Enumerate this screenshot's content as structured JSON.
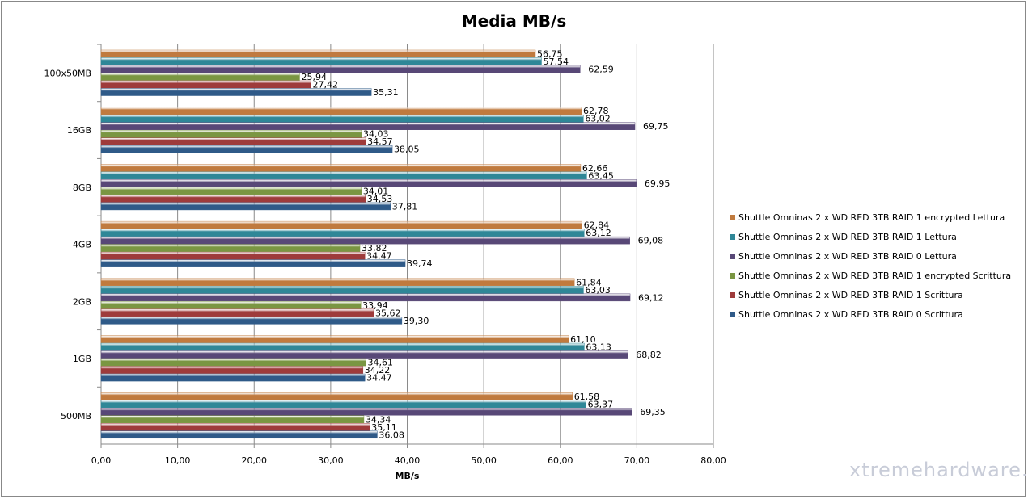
{
  "chart_data": {
    "type": "bar",
    "orientation": "horizontal",
    "title": "Media MB/s",
    "xlabel": "MB/s",
    "ylabel": "",
    "xlim": [
      0,
      80
    ],
    "xticks": [
      "0,00",
      "10,00",
      "20,00",
      "30,00",
      "40,00",
      "50,00",
      "60,00",
      "70,00",
      "80,00"
    ],
    "grid": true,
    "legend_position": "right",
    "categories": [
      "100x50MB",
      "16GB",
      "8GB",
      "4GB",
      "2GB",
      "1GB",
      "500MB"
    ],
    "series": [
      {
        "name": "Shuttle Omninas 2 x WD RED 3TB RAID 1 encrypted Lettura",
        "color": "#c07a3e",
        "values": [
          56.75,
          62.78,
          62.66,
          62.84,
          61.84,
          61.1,
          61.58
        ],
        "labels": [
          "56,75",
          "62,78",
          "62,66",
          "62,84",
          "61,84",
          "61,10",
          "61,58"
        ]
      },
      {
        "name": "Shuttle Omninas 2 x WD RED 3TB RAID 1 Lettura",
        "color": "#2f8797",
        "values": [
          57.54,
          63.02,
          63.45,
          63.12,
          63.03,
          63.13,
          63.37
        ],
        "labels": [
          "57,54",
          "63,02",
          "63,45",
          "63,12",
          "63,03",
          "63,13",
          "63,37"
        ]
      },
      {
        "name": "Shuttle Omninas 2 x WD RED 3TB RAID 0 Lettura",
        "color": "#584877",
        "values": [
          62.59,
          69.75,
          69.95,
          69.08,
          69.12,
          68.82,
          69.35
        ],
        "labels": [
          "62,59",
          "69,75",
          "69,95",
          "69,08",
          "69,12",
          "68,82",
          "69,35"
        ]
      },
      {
        "name": "Shuttle Omninas 2 x WD RED 3TB RAID 1 encrypted  Scrittura",
        "color": "#7a9642",
        "values": [
          25.94,
          34.03,
          34.01,
          33.82,
          33.94,
          34.61,
          34.34
        ],
        "labels": [
          "25,94",
          "34,03",
          "34,01",
          "33,82",
          "33,94",
          "34,61",
          "34,34"
        ]
      },
      {
        "name": "Shuttle Omninas 2 x WD RED 3TB RAID 1  Scrittura",
        "color": "#9e3b3b",
        "values": [
          27.42,
          34.57,
          34.53,
          34.47,
          35.62,
          34.22,
          35.11
        ],
        "labels": [
          "27,42",
          "34,57",
          "34,53",
          "34,47",
          "35,62",
          "34,22",
          "35,11"
        ]
      },
      {
        "name": "Shuttle Omninas 2 x WD RED 3TB RAID 0  Scrittura",
        "color": "#2f5a88",
        "values": [
          35.31,
          38.05,
          37.81,
          39.74,
          39.3,
          34.47,
          36.08
        ],
        "labels": [
          "35,31",
          "38,05",
          "37,81",
          "39,74",
          "39,30",
          "34,47",
          "36,08"
        ]
      }
    ]
  },
  "watermark": "xtremehardware.com"
}
